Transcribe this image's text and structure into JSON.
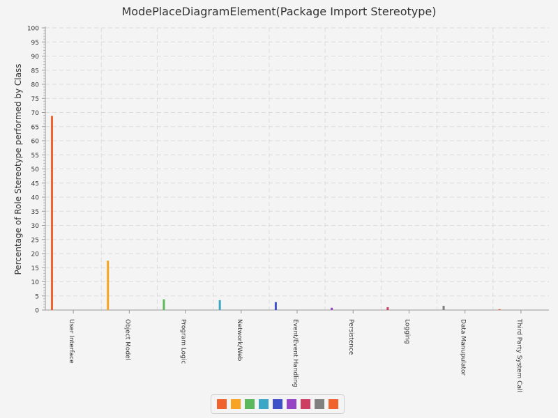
{
  "chart_data": {
    "type": "bar",
    "title": "ModePlaceDiagramElement(Package Import Stereotype)",
    "xlabel": "",
    "ylabel": "Percentage of Role Stereotype performed by Class",
    "ylim": [
      0,
      100
    ],
    "yticks": [
      0,
      5,
      10,
      15,
      20,
      25,
      30,
      35,
      40,
      45,
      50,
      55,
      60,
      65,
      70,
      75,
      80,
      85,
      90,
      95,
      100
    ],
    "categories": [
      "User Interface",
      "Object Model",
      "Program Logic",
      "Network/Web",
      "Event/Event Handling",
      "Persistence",
      "Logging",
      "Data Manupulator",
      "Third Party System Call"
    ],
    "values": [
      68.8,
      17.5,
      3.8,
      3.5,
      2.8,
      0.8,
      1.0,
      1.5,
      0.3
    ],
    "colors": [
      "#f0622e",
      "#f9a322",
      "#5cb85c",
      "#3ba6c5",
      "#3f51c8",
      "#9643c6",
      "#cc3f63",
      "#808080",
      "#f0622e"
    ],
    "grid": true,
    "legend_position": "bottom"
  }
}
